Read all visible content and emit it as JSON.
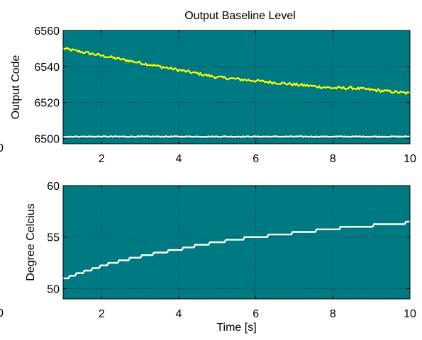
{
  "chart_data": [
    {
      "type": "line",
      "title": "Output Baseline Level",
      "xlabel": "",
      "ylabel": "Output Code",
      "xlim": [
        1,
        10
      ],
      "ylim": [
        6497,
        6560
      ],
      "xticks": [
        2,
        4,
        6,
        8,
        10
      ],
      "yticks": [
        6500,
        6520,
        6540,
        6560
      ],
      "grid": true,
      "background_color": "#007a82",
      "stray_label": "0",
      "series": [
        {
          "color": "#ffff00",
          "x": [
            1.0,
            1.5,
            2.0,
            2.5,
            3.0,
            3.5,
            4.0,
            4.5,
            5.0,
            5.5,
            6.0,
            6.5,
            7.0,
            7.5,
            8.0,
            8.5,
            9.0,
            9.5,
            10.0
          ],
          "y": [
            6550,
            6548,
            6546,
            6544,
            6542,
            6540,
            6538,
            6536,
            6534,
            6533,
            6532,
            6531,
            6530,
            6529,
            6528,
            6528,
            6527,
            6526,
            6525
          ]
        },
        {
          "color": "#ffffff",
          "x": [
            1.0,
            2.0,
            3.0,
            4.0,
            5.0,
            6.0,
            7.0,
            8.0,
            9.0,
            10.0
          ],
          "y": [
            6501,
            6501,
            6501,
            6501,
            6501,
            6501,
            6501,
            6501,
            6501,
            6501
          ]
        }
      ]
    },
    {
      "type": "line",
      "title": "",
      "xlabel": "Time [s]",
      "ylabel": "Degree Celcius",
      "xlim": [
        1,
        10
      ],
      "ylim": [
        49,
        60
      ],
      "xticks": [
        2,
        4,
        6,
        8,
        10
      ],
      "yticks": [
        50,
        55,
        60
      ],
      "grid": true,
      "background_color": "#007a82",
      "stray_label": "0",
      "series": [
        {
          "color": "#ffffff",
          "x": [
            1.0,
            1.5,
            2.0,
            2.5,
            3.0,
            3.5,
            4.0,
            4.5,
            5.0,
            5.5,
            6.0,
            6.5,
            7.0,
            7.5,
            8.0,
            8.5,
            9.0,
            9.5,
            10.0
          ],
          "y": [
            50.9,
            51.6,
            52.2,
            52.7,
            53.1,
            53.5,
            53.8,
            54.2,
            54.5,
            54.8,
            55.0,
            55.2,
            55.4,
            55.6,
            55.8,
            56.0,
            56.1,
            56.3,
            56.4
          ]
        }
      ]
    }
  ]
}
